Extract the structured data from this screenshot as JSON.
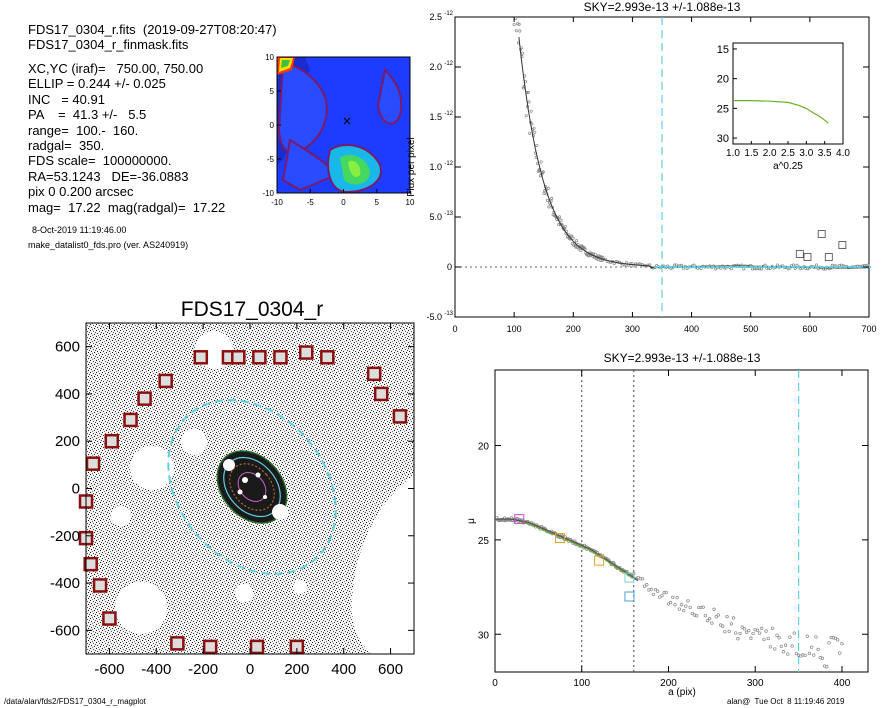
{
  "header": {
    "file_line": "FDS17_0304_r.fits  (2019-09-27T08:20:47)",
    "mask_line": "FDS17_0304_r_finmask.fits"
  },
  "info": {
    "lines": [
      "XC,YC (iraf)=   750.00, 750.00",
      "ELLIP = 0.244 +/- 0.025",
      "INC   = 40.91",
      "PA    =  41.3 +/-   5.5",
      "range=  100.-  160.",
      "radgal=  350.",
      "FDS scale=  100000000.",
      "RA=53.1243   DE=-36.0883",
      "pix 0 0.200 arcsec",
      "mag=  17.22  mag(radgal)=  17.22"
    ],
    "date": "8-Oct-2019 11:19:46.00",
    "program": "make_datalist0_fds.pro (ver. AS240919)"
  },
  "footer": {
    "path": "/data/alan/fds2/FDS17_0304_r_magplot",
    "user": "alan@  Tue Oct  8 11:19:46 2019"
  },
  "colors": {
    "cyan": "#5bd0e0",
    "mask_red": "#8b1010",
    "green_curve": "#6ab02a",
    "points": "#888888"
  },
  "chart_data": [
    {
      "id": "contour",
      "type": "heatmap",
      "title": "",
      "xlim": [
        -10,
        10
      ],
      "ylim": [
        -10,
        10
      ],
      "xticks": [
        "-10",
        "-5",
        "0",
        "5",
        "10"
      ],
      "yticks": [
        "10",
        "5",
        "0",
        "-5",
        "-10"
      ]
    },
    {
      "id": "sky_profile",
      "type": "scatter",
      "title": "SKY=2.993e-13 +/-1.088e-13",
      "ylabel": "Flux per pixel",
      "xlabel": "",
      "xlim": [
        0,
        700
      ],
      "ylim": [
        -5e-13,
        2.5e-12
      ],
      "xticks": [
        "0",
        "100",
        "200",
        "300",
        "400",
        "500",
        "600",
        "700"
      ],
      "yticks": [
        {
          "v": "-5.0",
          "e": "-13",
          "y": -5e-13
        },
        {
          "v": "0",
          "e": "",
          "y": 0
        },
        {
          "v": "5.0",
          "e": "-13",
          "y": 5e-13
        },
        {
          "v": "1.0",
          "e": "-12",
          "y": 1e-12
        },
        {
          "v": "1.5",
          "e": "-12",
          "y": 1.5e-12
        },
        {
          "v": "2.0",
          "e": "-12",
          "y": 2e-12
        },
        {
          "v": "2.5",
          "e": "-12",
          "y": 2.5e-12
        }
      ],
      "vline_x": 350,
      "squares": [
        [
          583,
          1.3e-13
        ],
        [
          596,
          1e-13
        ],
        [
          620,
          3.3e-13
        ],
        [
          632,
          1e-13
        ],
        [
          655,
          2.2e-13
        ]
      ]
    },
    {
      "id": "inset",
      "type": "line",
      "xlabel": "a^0.25",
      "xlim": [
        1.0,
        4.0
      ],
      "ylim": [
        31,
        14
      ],
      "xticks": [
        "1.0",
        "1.5",
        "2.0",
        "2.5",
        "3.0",
        "3.5",
        "4.0"
      ],
      "yticks": [
        "15",
        "20",
        "25",
        "30"
      ],
      "x": [
        1.0,
        1.5,
        2.0,
        2.5,
        2.8,
        3.0,
        3.2,
        3.35,
        3.5,
        3.6
      ],
      "y": [
        23.7,
        23.7,
        23.8,
        24.0,
        24.5,
        25.0,
        25.8,
        26.3,
        27.0,
        27.5
      ]
    },
    {
      "id": "image",
      "type": "scatter",
      "title": "FDS17_0304_r",
      "xlim": [
        -700,
        700
      ],
      "ylim": [
        -700,
        700
      ],
      "xticks": [
        "-600",
        "-400",
        "-200",
        "0",
        "200",
        "400",
        "600"
      ],
      "yticks": [
        "600",
        "400",
        "200",
        "0",
        "-200",
        "-400",
        "-600"
      ],
      "mask_boxes": [
        [
          -360,
          455
        ],
        [
          -210,
          555
        ],
        [
          -90,
          555
        ],
        [
          -50,
          555
        ],
        [
          40,
          555
        ],
        [
          130,
          555
        ],
        [
          240,
          575
        ],
        [
          330,
          555
        ],
        [
          530,
          485
        ],
        [
          560,
          400
        ],
        [
          640,
          305
        ],
        [
          -450,
          380
        ],
        [
          -510,
          290
        ],
        [
          -590,
          200
        ],
        [
          -670,
          105
        ],
        [
          -700,
          -55
        ],
        [
          -700,
          -210
        ],
        [
          -680,
          -320
        ],
        [
          -640,
          -410
        ],
        [
          -600,
          -550
        ],
        [
          -310,
          -655
        ],
        [
          -170,
          -670
        ],
        [
          30,
          -670
        ],
        [
          200,
          -670
        ]
      ]
    },
    {
      "id": "surface_brightness",
      "type": "line",
      "title": "SKY=2.993e-13 +/-1.088e-13",
      "xlabel": "a (pix)",
      "ylabel": "μ",
      "xlim": [
        0,
        430
      ],
      "ylim": [
        32,
        16
      ],
      "xticks": [
        "0",
        "100",
        "200",
        "300",
        "400"
      ],
      "yticks": [
        "20",
        "25",
        "30"
      ],
      "vlines": [
        100,
        160
      ],
      "vline_cyan": 350,
      "x": [
        0,
        10,
        20,
        30,
        40,
        50,
        60,
        70,
        80,
        90,
        100,
        110,
        120,
        130,
        140,
        150,
        160,
        170,
        180,
        190,
        200,
        210,
        220,
        230,
        240,
        250,
        260,
        270,
        280,
        290,
        300,
        310,
        320,
        330,
        340,
        350,
        360,
        370,
        380,
        390,
        400
      ],
      "y": [
        23.9,
        23.9,
        23.9,
        24.0,
        24.1,
        24.3,
        24.5,
        24.7,
        24.9,
        25.1,
        25.3,
        25.5,
        25.8,
        26.1,
        26.4,
        26.7,
        27.0,
        27.3,
        27.6,
        27.9,
        28.1,
        28.3,
        28.5,
        28.7,
        28.9,
        29.1,
        29.3,
        29.5,
        29.7,
        29.9,
        30.0,
        30.1,
        30.3,
        30.4,
        30.5,
        30.6,
        30.7,
        30.8,
        30.9,
        31.0,
        31.1
      ],
      "squares": [
        {
          "x": 28,
          "y": 23.9,
          "c": "#cc44cc"
        },
        {
          "x": 75,
          "y": 24.9,
          "c": "#e8a030"
        },
        {
          "x": 120,
          "y": 26.1,
          "c": "#e8a030"
        },
        {
          "x": 155,
          "y": 27.0,
          "c": "#7ad0d0"
        },
        {
          "x": 155,
          "y": 28.0,
          "c": "#4aa0d8"
        }
      ]
    }
  ]
}
